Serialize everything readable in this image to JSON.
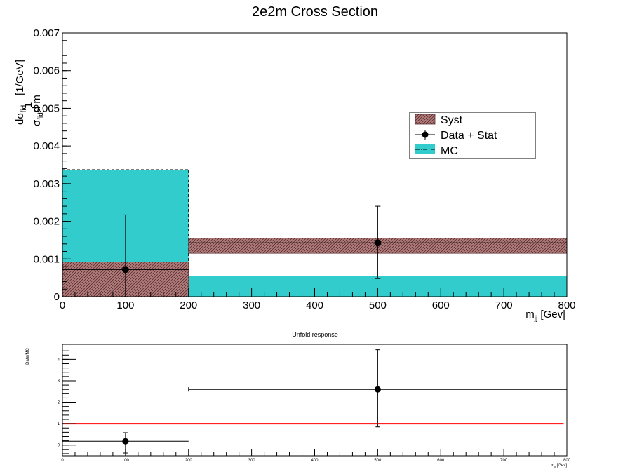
{
  "chart_data": [
    {
      "type": "bar",
      "title": "2e2m Cross Section",
      "xlabel": "m_jj [Gev]",
      "ylabel": "1/σ_fid dσ_fid/d m_jj [1/GeV]",
      "xlim": [
        0,
        800
      ],
      "ylim": [
        0,
        0.007
      ],
      "x_ticks": [
        "0",
        "100",
        "200",
        "300",
        "400",
        "500",
        "600",
        "700",
        "800"
      ],
      "y_ticks": [
        "0",
        "0.001",
        "0.002",
        "0.003",
        "0.004",
        "0.005",
        "0.006",
        "0.007"
      ],
      "legend": {
        "placement": "top-right",
        "entries": [
          "Syst",
          "Data + Stat",
          "MC"
        ]
      },
      "bins": [
        [
          0,
          200
        ],
        [
          200,
          800
        ]
      ],
      "mc": [
        0.00337,
        0.00055
      ],
      "syst_band": [
        [
          0.0,
          0.00092
        ],
        [
          0.00115,
          0.00155
        ]
      ],
      "data": [
        {
          "x": 100,
          "y": 0.00072,
          "err_low": 0.00072,
          "err_high": 0.00145
        },
        {
          "x": 500,
          "y": 0.00143,
          "err_low": 0.00095,
          "err_high": 0.00097
        }
      ],
      "colors": {
        "mc": "#33cccc",
        "syst": "#b27f7f",
        "data": "#000000"
      }
    },
    {
      "type": "scatter",
      "title": "Unfold response",
      "xlabel": "m_jj [Gev]",
      "ylabel": "Data/MC",
      "xlim": [
        0,
        800
      ],
      "ylim": [
        -0.5,
        4.7
      ],
      "x_ticks": [
        "0",
        "100",
        "200",
        "300",
        "400",
        "500",
        "600",
        "700",
        "800"
      ],
      "y_ticks": [
        "0",
        "1",
        "2",
        "3",
        "4"
      ],
      "reference_line": {
        "y": 1,
        "color": "#ff0000"
      },
      "points": [
        {
          "x": 100,
          "y": 0.18,
          "xerr": 100,
          "err_low": 0.55,
          "err_high": 0.4
        },
        {
          "x": 500,
          "y": 2.6,
          "xerr": 300,
          "err_low": 1.75,
          "err_high": 1.85
        }
      ]
    }
  ]
}
